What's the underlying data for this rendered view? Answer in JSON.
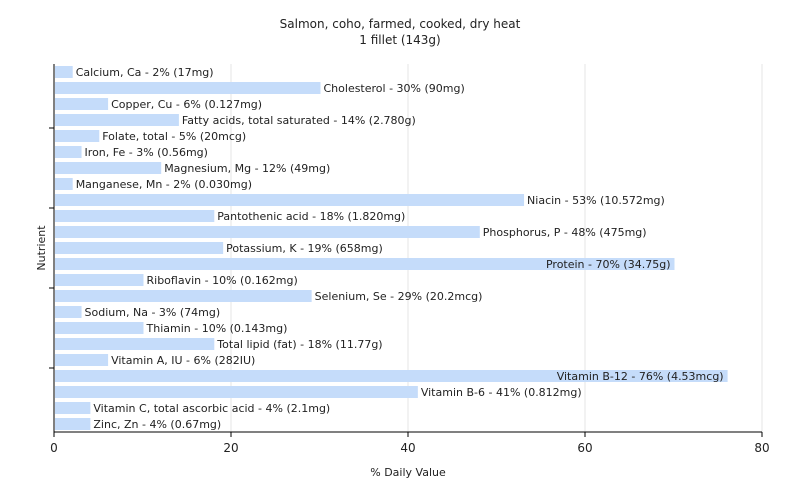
{
  "chart_data": {
    "type": "bar",
    "orientation": "horizontal",
    "title": "Salmon, coho, farmed, cooked, dry heat",
    "subtitle": "1 fillet (143g)",
    "xlabel": "% Daily Value",
    "ylabel": "Nutrient",
    "xlim": [
      0,
      80
    ],
    "xticks": [
      "0",
      "20",
      "40",
      "60",
      "80"
    ],
    "grid": true,
    "bar_color": "#c5dcfa",
    "categories": [
      "Calcium, Ca",
      "Cholesterol",
      "Copper, Cu",
      "Fatty acids, total saturated",
      "Folate, total",
      "Iron, Fe",
      "Magnesium, Mg",
      "Manganese, Mn",
      "Niacin",
      "Pantothenic acid",
      "Phosphorus, P",
      "Potassium, K",
      "Protein",
      "Riboflavin",
      "Selenium, Se",
      "Sodium, Na",
      "Thiamin",
      "Total lipid (fat)",
      "Vitamin A, IU",
      "Vitamin B-12",
      "Vitamin B-6",
      "Vitamin C, total ascorbic acid",
      "Zinc, Zn"
    ],
    "values": [
      2,
      30,
      6,
      14,
      5,
      3,
      12,
      2,
      53,
      18,
      48,
      19,
      70,
      10,
      29,
      3,
      10,
      18,
      6,
      76,
      41,
      4,
      4
    ],
    "labels": [
      "Calcium, Ca - 2% (17mg)",
      "Cholesterol - 30% (90mg)",
      "Copper, Cu - 6% (0.127mg)",
      "Fatty acids, total saturated - 14% (2.780g)",
      "Folate, total - 5% (20mcg)",
      "Iron, Fe - 3% (0.56mg)",
      "Magnesium, Mg - 12% (49mg)",
      "Manganese, Mn - 2% (0.030mg)",
      "Niacin - 53% (10.572mg)",
      "Pantothenic acid - 18% (1.820mg)",
      "Phosphorus, P - 48% (475mg)",
      "Potassium, K - 19% (658mg)",
      "Protein - 70% (34.75g)",
      "Riboflavin - 10% (0.162mg)",
      "Selenium, Se - 29% (20.2mcg)",
      "Sodium, Na - 3% (74mg)",
      "Thiamin - 10% (0.143mg)",
      "Total lipid (fat) - 18% (11.77g)",
      "Vitamin A, IU - 6% (282IU)",
      "Vitamin B-12 - 76% (4.53mcg)",
      "Vitamin B-6 - 41% (0.812mg)",
      "Vitamin C, total ascorbic acid - 4% (2.1mg)",
      "Zinc, Zn - 4% (0.67mg)"
    ]
  }
}
